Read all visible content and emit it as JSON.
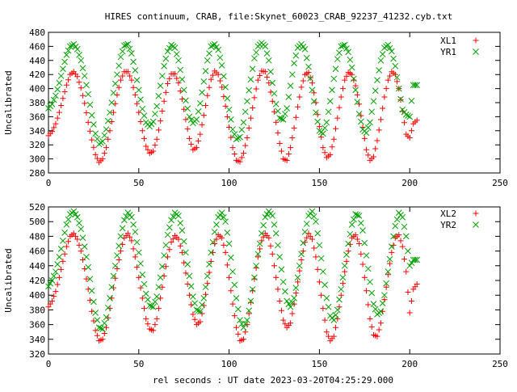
{
  "title": "HIRES continuum, CRAB, file:Skynet_60023_CRAB_92237_41232.cyb.txt",
  "xlabel": "rel seconds : UT date 2023-03-20T04:25:29.000",
  "chart_data": [
    {
      "type": "scatter",
      "ylabel": "Uncalibrated",
      "xlim": [
        0,
        250
      ],
      "ylim": [
        280,
        480
      ],
      "xticks": [
        0,
        50,
        100,
        150,
        200,
        250
      ],
      "yticks": [
        280,
        300,
        320,
        340,
        360,
        380,
        400,
        420,
        440,
        460,
        480
      ],
      "legend_position": "top-right",
      "series": [
        {
          "name": "XL1",
          "color": "#ff0000",
          "marker": "plus",
          "x": [
            0,
            2,
            4,
            6,
            8,
            10,
            12,
            14,
            16,
            18,
            20,
            22,
            24,
            26,
            28,
            30,
            32,
            34,
            36,
            38,
            40,
            42,
            44,
            46,
            48,
            50,
            52,
            54,
            56,
            58,
            60,
            62,
            64,
            66,
            68,
            70,
            72,
            74,
            76,
            78,
            80,
            82,
            84,
            86,
            88,
            90,
            92,
            94,
            96,
            98,
            100,
            102,
            104,
            106,
            108,
            110,
            112,
            114,
            116,
            118,
            120,
            122,
            124,
            126,
            128,
            130,
            132,
            134,
            136,
            138,
            140,
            142,
            144,
            146,
            148,
            150,
            152,
            154,
            156,
            158,
            160,
            162,
            164,
            166,
            168,
            170,
            172,
            174,
            176,
            178,
            180,
            182,
            184,
            186,
            188,
            190,
            192,
            194,
            196,
            198,
            200,
            202,
            204
          ],
          "y": [
            333,
            339,
            350,
            366,
            386,
            405,
            420,
            424,
            417,
            401,
            379,
            352,
            327,
            306,
            295,
            300,
            316,
            340,
            366,
            391,
            412,
            424,
            424,
            412,
            391,
            366,
            340,
            318,
            308,
            311,
            328,
            354,
            382,
            407,
            421,
            421,
            408,
            385,
            356,
            329,
            313,
            316,
            335,
            362,
            390,
            413,
            425,
            420,
            402,
            375,
            345,
            316,
            298,
            296,
            308,
            330,
            358,
            387,
            412,
            425,
            424,
            408,
            382,
            352,
            322,
            300,
            298,
            316,
            344,
            374,
            402,
            420,
            423,
            408,
            380,
            346,
            316,
            302,
            306,
            328,
            358,
            388,
            412,
            423,
            420,
            404,
            378,
            345,
            313,
            298,
            303,
            326,
            356,
            388,
            412,
            424,
            420,
            400,
            368,
            335,
            330,
            350,
            355
          ]
        },
        {
          "name": "YR1",
          "color": "#00a000",
          "marker": "cross",
          "x": [
            0,
            2,
            4,
            6,
            8,
            10,
            12,
            14,
            16,
            18,
            20,
            22,
            24,
            26,
            28,
            30,
            32,
            34,
            36,
            38,
            40,
            42,
            44,
            46,
            48,
            50,
            52,
            54,
            56,
            58,
            60,
            62,
            64,
            66,
            68,
            70,
            72,
            74,
            76,
            78,
            80,
            82,
            84,
            86,
            88,
            90,
            92,
            94,
            96,
            98,
            100,
            102,
            104,
            106,
            108,
            110,
            112,
            114,
            116,
            118,
            120,
            122,
            124,
            126,
            128,
            130,
            132,
            134,
            136,
            138,
            140,
            142,
            144,
            146,
            148,
            150,
            152,
            154,
            156,
            158,
            160,
            162,
            164,
            166,
            168,
            170,
            172,
            174,
            176,
            178,
            180,
            182,
            184,
            186,
            188,
            190,
            192,
            194,
            196,
            198,
            200,
            202,
            204
          ],
          "y": [
            372,
            378,
            390,
            408,
            428,
            448,
            460,
            463,
            456,
            440,
            418,
            392,
            362,
            336,
            321,
            325,
            342,
            366,
            394,
            420,
            445,
            461,
            463,
            450,
            426,
            398,
            371,
            352,
            346,
            353,
            375,
            404,
            432,
            453,
            462,
            458,
            440,
            413,
            383,
            360,
            351,
            356,
            379,
            410,
            440,
            460,
            463,
            455,
            433,
            402,
            370,
            342,
            328,
            331,
            352,
            382,
            413,
            443,
            460,
            465,
            460,
            440,
            408,
            378,
            358,
            356,
            372,
            404,
            436,
            458,
            463,
            456,
            431,
            398,
            366,
            340,
            336,
            352,
            382,
            414,
            442,
            460,
            462,
            452,
            430,
            398,
            364,
            342,
            337,
            352,
            382,
            412,
            440,
            458,
            462,
            453,
            432,
            400,
            370,
            363,
            360,
            405,
            405
          ]
        }
      ]
    },
    {
      "type": "scatter",
      "ylabel": "Uncalibrated",
      "xlim": [
        0,
        250
      ],
      "ylim": [
        320,
        520
      ],
      "xticks": [
        0,
        50,
        100,
        150,
        200,
        250
      ],
      "yticks": [
        320,
        340,
        360,
        380,
        400,
        420,
        440,
        460,
        480,
        500,
        520
      ],
      "legend_position": "top-right",
      "series": [
        {
          "name": "XL2",
          "color": "#ff0000",
          "marker": "plus",
          "x": [
            0,
            2,
            4,
            6,
            8,
            10,
            12,
            14,
            16,
            18,
            20,
            22,
            24,
            26,
            28,
            30,
            32,
            34,
            36,
            38,
            40,
            42,
            44,
            46,
            48,
            50,
            52,
            54,
            56,
            58,
            60,
            62,
            64,
            66,
            68,
            70,
            72,
            74,
            76,
            78,
            80,
            82,
            84,
            86,
            88,
            90,
            92,
            94,
            96,
            98,
            100,
            102,
            104,
            106,
            108,
            110,
            112,
            114,
            116,
            118,
            120,
            122,
            124,
            126,
            128,
            130,
            132,
            134,
            136,
            138,
            140,
            142,
            144,
            146,
            148,
            150,
            152,
            154,
            156,
            158,
            160,
            162,
            164,
            166,
            168,
            170,
            172,
            174,
            176,
            178,
            180,
            182,
            184,
            186,
            188,
            190,
            192,
            194,
            196,
            198,
            200,
            202,
            204
          ],
          "y": [
            384,
            392,
            405,
            424,
            446,
            466,
            480,
            484,
            476,
            460,
            436,
            408,
            378,
            352,
            338,
            340,
            356,
            382,
            410,
            436,
            460,
            478,
            484,
            474,
            452,
            424,
            396,
            368,
            354,
            352,
            368,
            396,
            426,
            452,
            472,
            481,
            476,
            458,
            430,
            400,
            374,
            360,
            364,
            386,
            416,
            446,
            470,
            482,
            478,
            458,
            424,
            388,
            356,
            338,
            340,
            360,
            390,
            422,
            452,
            474,
            484,
            478,
            456,
            424,
            392,
            366,
            356,
            362,
            388,
            418,
            448,
            472,
            484,
            476,
            452,
            418,
            382,
            350,
            338,
            344,
            368,
            400,
            432,
            460,
            478,
            482,
            470,
            442,
            406,
            368,
            346,
            344,
            362,
            394,
            428,
            458,
            478,
            482,
            466,
            432,
            376,
            408,
            415
          ]
        },
        {
          "name": "YR2",
          "color": "#00a000",
          "marker": "cross",
          "x": [
            0,
            2,
            4,
            6,
            8,
            10,
            12,
            14,
            16,
            18,
            20,
            22,
            24,
            26,
            28,
            30,
            32,
            34,
            36,
            38,
            40,
            42,
            44,
            46,
            48,
            50,
            52,
            54,
            56,
            58,
            60,
            62,
            64,
            66,
            68,
            70,
            72,
            74,
            76,
            78,
            80,
            82,
            84,
            86,
            88,
            90,
            92,
            94,
            96,
            98,
            100,
            102,
            104,
            106,
            108,
            110,
            112,
            114,
            116,
            118,
            120,
            122,
            124,
            126,
            128,
            130,
            132,
            134,
            136,
            138,
            140,
            142,
            144,
            146,
            148,
            150,
            152,
            154,
            156,
            158,
            160,
            162,
            164,
            166,
            168,
            170,
            172,
            174,
            176,
            178,
            180,
            182,
            184,
            186,
            188,
            190,
            192,
            194,
            196,
            198,
            200,
            202,
            204
          ],
          "y": [
            412,
            420,
            432,
            452,
            474,
            496,
            510,
            514,
            506,
            490,
            466,
            438,
            406,
            376,
            356,
            354,
            370,
            396,
            426,
            454,
            480,
            502,
            512,
            506,
            486,
            458,
            428,
            402,
            386,
            384,
            398,
            424,
            454,
            482,
            502,
            512,
            508,
            488,
            458,
            426,
            398,
            380,
            378,
            396,
            426,
            458,
            486,
            506,
            512,
            500,
            470,
            432,
            396,
            366,
            356,
            366,
            392,
            424,
            456,
            484,
            506,
            514,
            508,
            484,
            452,
            418,
            392,
            384,
            396,
            424,
            456,
            486,
            508,
            514,
            500,
            468,
            432,
            396,
            372,
            366,
            380,
            408,
            440,
            470,
            496,
            510,
            508,
            488,
            454,
            418,
            388,
            374,
            378,
            400,
            432,
            466,
            494,
            512,
            506,
            480,
            440,
            448,
            448
          ]
        }
      ]
    }
  ]
}
